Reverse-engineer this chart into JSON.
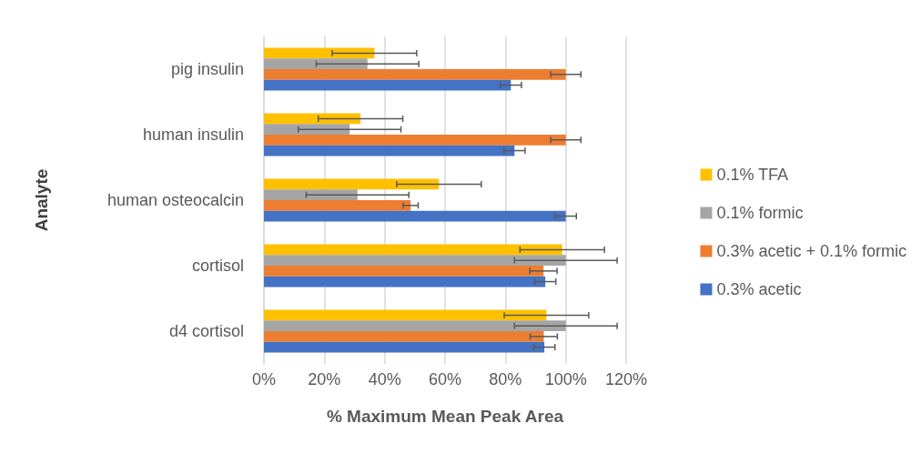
{
  "chart_data": {
    "type": "bar",
    "orientation": "horizontal",
    "xlabel": "% Maximum Mean Peak Area",
    "ylabel": "Analyte",
    "categories": [
      "pig insulin",
      "human insulin",
      "human osteocalcin",
      "cortisol",
      "d4 cortisol"
    ],
    "series": [
      {
        "name": "0.1% TFA",
        "color": "#ffc000",
        "values": [
          36.6,
          32,
          58,
          98.8,
          93.6
        ],
        "errors": [
          14,
          14,
          14,
          14,
          14
        ]
      },
      {
        "name": "0.1% formic",
        "color": "#a5a5a5",
        "values": [
          34.3,
          28.4,
          31,
          100,
          100
        ],
        "errors": [
          17,
          17,
          17,
          17,
          17
        ]
      },
      {
        "name": "0.3% acetic + 0.1% formic",
        "color": "#ed7d31",
        "values": [
          100,
          100,
          48.6,
          92.6,
          92.7
        ],
        "errors": [
          5,
          5,
          2.5,
          4.5,
          4.5
        ]
      },
      {
        "name": "0.3% acetic",
        "color": "#4472c4",
        "values": [
          81.8,
          83,
          100,
          93.2,
          92.9
        ],
        "errors": [
          3.5,
          3.5,
          3.5,
          3.5,
          3.5
        ]
      }
    ],
    "xlim": [
      0,
      120
    ],
    "xticks": [
      {
        "value": 0,
        "label": "0%"
      },
      {
        "value": 20,
        "label": "20%"
      },
      {
        "value": 40,
        "label": "40%"
      },
      {
        "value": 60,
        "label": "60%"
      },
      {
        "value": 80,
        "label": "80%"
      },
      {
        "value": 100,
        "label": "100%"
      },
      {
        "value": 120,
        "label": "120%"
      }
    ],
    "grid": "x",
    "legend": "right"
  }
}
